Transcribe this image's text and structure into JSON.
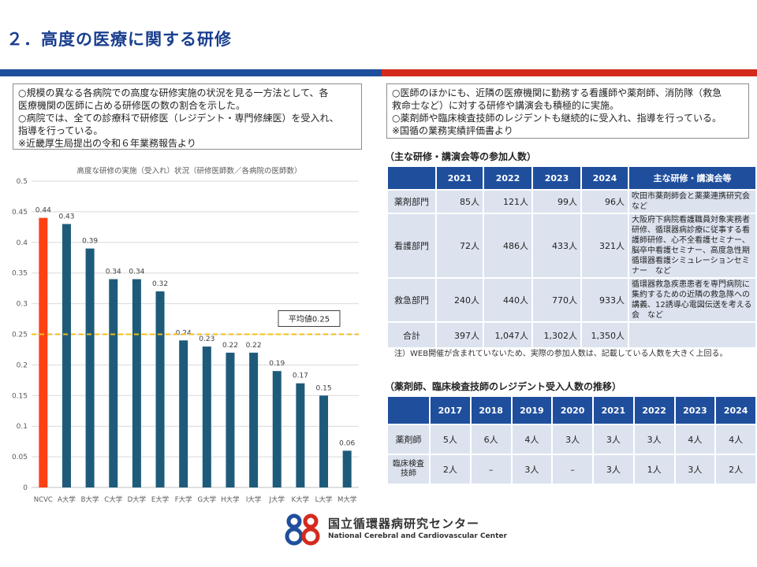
{
  "slide_title": "２．高度の医療に関する研修",
  "left_box": {
    "lines": [
      "○規模の異なる各病院での高度な研修実施の状況を見る一方法として、各",
      "医療機関の医師に占める研修医の数の割合を示した。",
      "○病院では、全ての診療科で研修医（レジデント・専門修練医）を受入れ、",
      "指導を行っている。",
      "※近畿厚生局提出の令和６年業務報告より"
    ]
  },
  "right_box": {
    "lines": [
      "○医師のほかにも、近隣の医療機関に勤務する看護師や薬剤師、消防隊（救急",
      "救命士など）に対する研修や講演会も積極的に実施。",
      "○薬剤師や臨床検査技師のレジデントも継続的に受入れ、指導を行っている。",
      "※国循の業務実績評価書より"
    ]
  },
  "chart_data": {
    "type": "bar",
    "title": "高度な研修の実施（受入れ）状況（研修医師数／各病院の医師数）",
    "categories": [
      "NCVC",
      "A大学",
      "B大学",
      "C大学",
      "D大学",
      "E大学",
      "F大学",
      "G大学",
      "H大学",
      "I大学",
      "J大学",
      "K大学",
      "L大学",
      "M大学"
    ],
    "values": [
      0.44,
      0.43,
      0.39,
      0.34,
      0.34,
      0.32,
      0.24,
      0.23,
      0.22,
      0.22,
      0.19,
      0.17,
      0.15,
      0.06
    ],
    "value_labels": [
      "0.44",
      "0.43",
      "0.39",
      "0.34",
      "0.34",
      "0.32",
      "0.24",
      "0.23",
      "0.22",
      "0.22",
      "0.19",
      "0.17",
      "0.15",
      "0.06"
    ],
    "highlight_index": 0,
    "ylim": [
      0,
      0.5
    ],
    "yticks": [
      "0",
      "0.05",
      "0.1",
      "0.15",
      "0.2",
      "0.25",
      "0.3",
      "0.35",
      "0.4",
      "0.45",
      "0.5"
    ],
    "average_value": 0.25,
    "average_label": "平均値0.25",
    "grid": true,
    "colors": {
      "highlight": "#ff4013",
      "bar": "#1e5b7a",
      "average_line": "#f2c012"
    }
  },
  "training_table": {
    "heading": "（主な研修・講演会等の参加人数）",
    "headers": [
      "",
      "2021",
      "2022",
      "2023",
      "2024",
      "主な研修・講演会等"
    ],
    "rows": [
      {
        "label": "薬剤部門",
        "values": [
          "85人",
          "121人",
          "99人",
          "96人"
        ],
        "desc": "吹田市薬剤師会と薬薬連携研究会など"
      },
      {
        "label": "看護部門",
        "values": [
          "72人",
          "486人",
          "433人",
          "321人"
        ],
        "desc": "大阪府下病院看護職員対象実務者研修、循環器病診療に従事する看護師研修、心不全看護セミナー、脳卒中看護セミナー、高度急性期循環器看護シミュレーションセミナー　など"
      },
      {
        "label": "救急部門",
        "values": [
          "240人",
          "440人",
          "770人",
          "933人"
        ],
        "desc": "循環器救急疾患患者を専門病院に集約するための近隣の救急隊への講義、12誘導心電図伝送を考える会　など"
      },
      {
        "label": "合計",
        "values": [
          "397人",
          "1,047人",
          "1,302人",
          "1,350人"
        ],
        "desc": ""
      }
    ],
    "note": "注）WEB開催が含まれていないため、実際の参加人数は、記載している人数を大きく上回る。"
  },
  "resident_table": {
    "heading": "（薬剤師、臨床検査技師のレジデント受入人数の推移）",
    "headers": [
      "",
      "2017",
      "2018",
      "2019",
      "2020",
      "2021",
      "2022",
      "2023",
      "2024"
    ],
    "rows": [
      {
        "label": "薬剤師",
        "values": [
          "5人",
          "6人",
          "4人",
          "3人",
          "3人",
          "3人",
          "4人",
          "4人"
        ]
      },
      {
        "label": "臨床検査技師",
        "values": [
          "2人",
          "–",
          "3人",
          "–",
          "3人",
          "1人",
          "3人",
          "2人"
        ]
      }
    ]
  },
  "footer": {
    "org_name_jp": "国立循環器病研究センター",
    "org_name_en": "National Cerebral and Cardiovascular Center",
    "logo_icon": "ncvc-logo-mark",
    "logo_colors": {
      "primary": "#1f4e9c",
      "secondary": "#d42a1e"
    }
  }
}
